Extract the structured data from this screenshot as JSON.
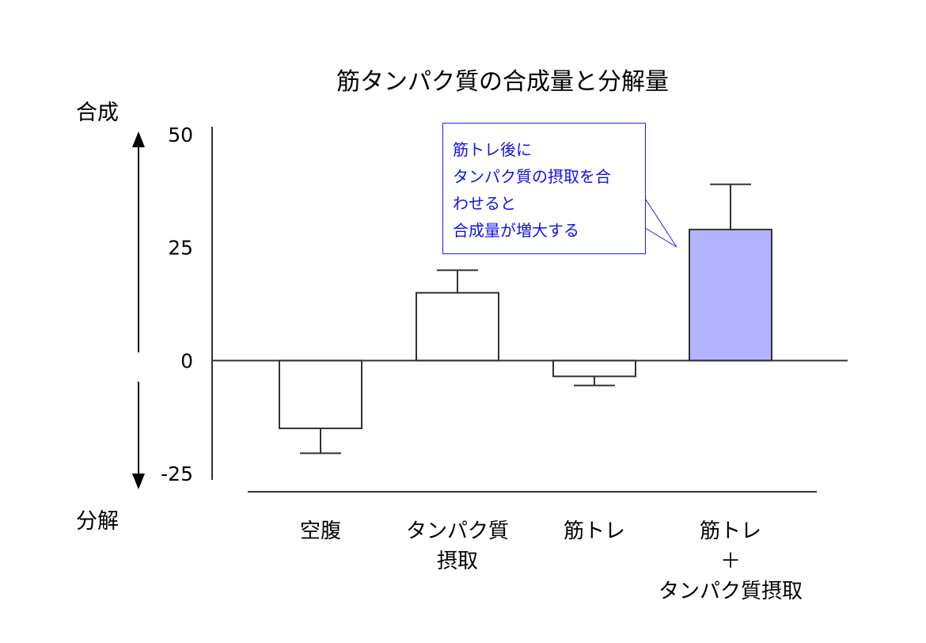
{
  "chart_data": {
    "type": "bar",
    "title": "筋タンパク質の合成量と分解量",
    "categories": [
      [
        "空腹"
      ],
      [
        "タンパク質",
        "摂取"
      ],
      [
        "筋トレ"
      ],
      [
        "筋トレ",
        "＋",
        "タンパク質摂取"
      ]
    ],
    "values": [
      -15,
      15,
      -3.5,
      29
    ],
    "error_bars": [
      5.5,
      5,
      2,
      10
    ],
    "ylim": [
      -25,
      50
    ],
    "yticks": [
      "50",
      "25",
      "0",
      "-25"
    ],
    "grid": false,
    "bar_colors": [
      "#ffffff",
      "#ffffff",
      "#ffffff",
      "#b3b3ff"
    ],
    "bar_edge_color": "#333333",
    "axis_labels": {
      "top": "合成",
      "bottom": "分解"
    },
    "annotation": {
      "lines": [
        "筋トレ後に",
        "タンパク質の摂取を合",
        "わせると",
        "合成量が増大する"
      ],
      "color": "#1111ee",
      "border_color": "#1c1cff",
      "points_to": "筋トレ＋タンパク質摂取"
    }
  }
}
